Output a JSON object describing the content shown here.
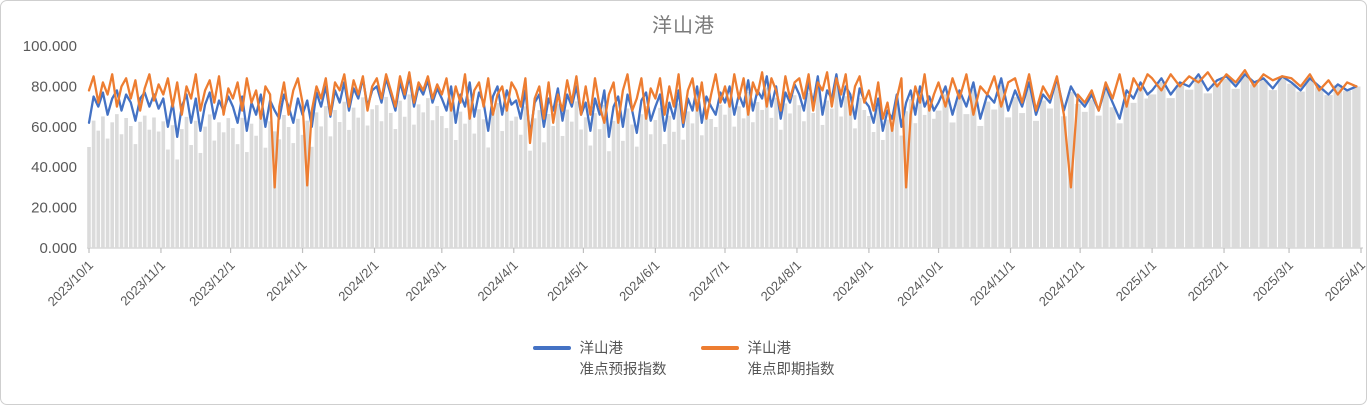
{
  "title": "洋山港",
  "chart_data": {
    "type": "line",
    "subtype": "two line series over daily background columns",
    "title": "洋山港",
    "xlabel": "",
    "ylabel": "",
    "ylim": [
      0,
      100
    ],
    "grid": false,
    "legend_position": "bottom-center",
    "y_ticks": [
      "0.000",
      "20.000",
      "40.000",
      "60.000",
      "80.000",
      "100.000"
    ],
    "y_tick_values": [
      0,
      20,
      40,
      60,
      80,
      100
    ],
    "x_tick_labels": [
      "2023/10/1",
      "2023/11/1",
      "2023/12/1",
      "2024/1/1",
      "2024/2/1",
      "2024/3/1",
      "2024/4/1",
      "2024/5/1",
      "2024/6/1",
      "2024/7/1",
      "2024/8/1",
      "2024/9/1",
      "2024/10/1",
      "2024/11/1",
      "2024/12/1",
      "2025/1/1",
      "2025/2/1",
      "2025/3/1",
      "2025/4/1"
    ],
    "x_tick_day_offsets": [
      0,
      31,
      61,
      92,
      123,
      152,
      183,
      213,
      244,
      274,
      305,
      336,
      366,
      397,
      427,
      458,
      489,
      517,
      548
    ],
    "x_total_days": 548,
    "x_start": "2023/10/1",
    "x_end": "2025/4/1",
    "sampling": [
      {
        "start_day": 0,
        "end_day": 364,
        "step_days": 2
      },
      {
        "start_day": 366,
        "end_day": 456,
        "step_days": 3
      },
      {
        "start_day": 458,
        "end_day": 546,
        "step_days": 4
      }
    ],
    "series": [
      {
        "name": "洋山港准点预报指数",
        "legend": [
          "洋山港",
          "准点预报指数"
        ],
        "color": "#4472C4",
        "values": [
          62,
          75,
          70,
          77,
          66,
          74,
          78,
          68,
          76,
          72,
          63,
          74,
          77,
          70,
          76,
          69,
          74,
          60,
          72,
          55,
          70,
          76,
          62,
          74,
          58,
          71,
          77,
          64,
          73,
          68,
          75,
          70,
          62,
          75,
          58,
          72,
          66,
          76,
          60,
          73,
          68,
          64,
          76,
          70,
          62,
          74,
          66,
          73,
          60,
          77,
          70,
          80,
          65,
          78,
          72,
          82,
          68,
          79,
          74,
          84,
          70,
          78,
          80,
          72,
          84,
          76,
          68,
          82,
          74,
          85,
          70,
          80,
          76,
          83,
          72,
          79,
          74,
          68,
          80,
          62,
          76,
          70,
          82,
          65,
          77,
          72,
          58,
          75,
          80,
          66,
          78,
          71,
          73,
          64,
          78,
          56,
          72,
          76,
          60,
          74,
          68,
          79,
          63,
          76,
          70,
          80,
          66,
          72,
          58,
          74,
          66,
          78,
          55,
          70,
          75,
          60,
          76,
          68,
          57,
          73,
          77,
          63,
          70,
          76,
          58,
          72,
          64,
          78,
          60,
          74,
          68,
          80,
          62,
          75,
          70,
          66,
          77,
          72,
          80,
          66,
          76,
          70,
          83,
          68,
          78,
          74,
          85,
          70,
          80,
          64,
          77,
          72,
          81,
          76,
          68,
          82,
          72,
          85,
          66,
          78,
          74,
          86,
          70,
          80,
          76,
          64,
          79,
          73,
          70,
          62,
          74,
          58,
          68,
          64,
          76,
          60,
          72,
          78,
          66,
          80,
          70,
          75,
          68,
          72,
          80,
          66,
          78,
          70,
          82,
          64,
          76,
          72,
          84,
          68,
          78,
          70,
          82,
          66,
          76,
          72,
          84,
          68,
          80,
          74,
          70,
          76,
          68,
          80,
          72,
          64,
          78,
          74,
          82,
          76,
          78,
          84,
          76,
          82,
          80,
          86,
          78,
          83,
          85,
          80,
          86,
          82,
          84,
          79,
          85,
          82,
          78,
          84,
          80,
          76,
          81,
          78,
          80
        ]
      },
      {
        "name": "洋山港准点即期指数",
        "legend": [
          "洋山港",
          "准点即期指数"
        ],
        "color": "#ED7D31",
        "values": [
          78,
          85,
          72,
          82,
          76,
          86,
          70,
          80,
          84,
          74,
          83,
          68,
          79,
          86,
          73,
          81,
          76,
          84,
          70,
          82,
          66,
          80,
          74,
          86,
          68,
          78,
          83,
          72,
          85,
          66,
          79,
          74,
          82,
          68,
          84,
          72,
          78,
          64,
          80,
          76,
          30,
          70,
          82,
          66,
          78,
          84,
          72,
          31,
          68,
          80,
          74,
          84,
          66,
          82,
          78,
          86,
          70,
          83,
          76,
          85,
          68,
          80,
          84,
          74,
          86,
          78,
          70,
          85,
          76,
          87,
          72,
          82,
          78,
          85,
          74,
          81,
          76,
          84,
          68,
          80,
          72,
          86,
          64,
          78,
          82,
          70,
          84,
          66,
          76,
          80,
          68,
          82,
          78,
          70,
          84,
          52,
          74,
          80,
          64,
          82,
          62,
          76,
          68,
          83,
          72,
          85,
          66,
          80,
          66,
          84,
          70,
          62,
          76,
          82,
          62,
          78,
          86,
          68,
          74,
          84,
          64,
          79,
          74,
          84,
          66,
          80,
          70,
          86,
          62,
          78,
          84,
          68,
          82,
          64,
          76,
          86,
          72,
          80,
          70,
          86,
          74,
          84,
          66,
          82,
          76,
          87,
          70,
          84,
          78,
          68,
          85,
          74,
          82,
          84,
          74,
          86,
          68,
          82,
          78,
          87,
          70,
          84,
          76,
          86,
          66,
          80,
          85,
          72,
          78,
          68,
          82,
          64,
          72,
          58,
          74,
          84,
          30,
          66,
          80,
          72,
          86,
          68,
          76,
          82,
          70,
          84,
          74,
          86,
          66,
          80,
          76,
          85,
          70,
          82,
          84,
          72,
          86,
          68,
          80,
          74,
          85,
          66,
          30,
          76,
          72,
          78,
          68,
          82,
          74,
          86,
          70,
          84,
          78,
          86,
          84,
          78,
          86,
          80,
          85,
          82,
          87,
          80,
          86,
          82,
          88,
          80,
          86,
          83,
          85,
          84,
          80,
          86,
          78,
          83,
          76,
          82,
          80
        ]
      }
    ],
    "background_bars": {
      "description": "light gray daily columns rising to just under the forecast line",
      "follows_series": 0,
      "offset_start": 12,
      "offset_end": 0,
      "color": "#dbdbdb"
    },
    "colors": {
      "forecast_line": "#4472C4",
      "spot_line": "#ED7D31",
      "background_bar": "#dbdbdb",
      "axis_line": "#d9d9d9",
      "tick_mark": "#bfbfbf",
      "axis_text": "#595959",
      "title_text": "#7b7b7b",
      "legend_text": "#555555"
    }
  }
}
